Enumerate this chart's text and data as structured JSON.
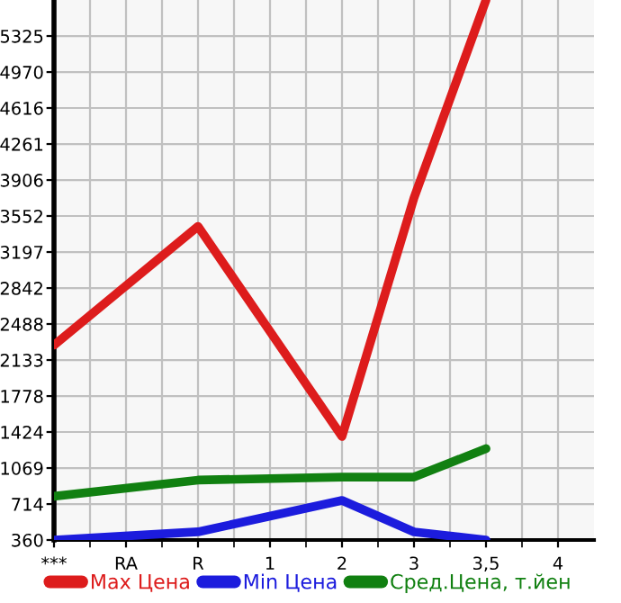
{
  "chart_data": {
    "type": "line",
    "categories": [
      "***",
      "RA",
      "R",
      "1",
      "2",
      "3",
      "3,5",
      "4"
    ],
    "series": [
      {
        "name": "Max Цена",
        "color": "#dd1c1c",
        "values": [
          2280,
          null,
          3450,
          null,
          1380,
          3730,
          5680,
          null
        ]
      },
      {
        "name": "Min Цена",
        "color": "#1c1cdd",
        "values": [
          360,
          null,
          440,
          null,
          750,
          440,
          360,
          null
        ]
      },
      {
        "name": "Сред.Цена, т.йен",
        "color": "#118011",
        "values": [
          790,
          null,
          950,
          null,
          980,
          980,
          1260,
          null
        ]
      }
    ],
    "ylim": [
      360,
      5680
    ],
    "yticks": [
      360,
      714,
      1069,
      1424,
      1778,
      2133,
      2488,
      2842,
      3197,
      3552,
      3906,
      4261,
      4616,
      4970,
      5325
    ],
    "grid": true,
    "legend": "bottom",
    "marker": "none",
    "line_style": "solid"
  }
}
